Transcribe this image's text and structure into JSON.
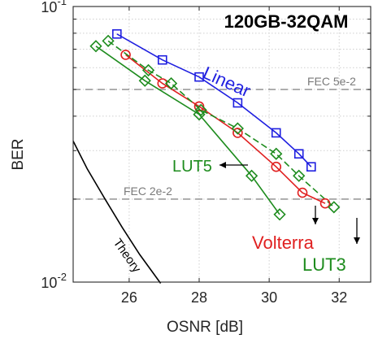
{
  "chart_data": {
    "type": "line",
    "title": "120GB-32QAM",
    "xlabel": "OSNR [dB]",
    "ylabel": "BER",
    "yscale": "log",
    "xlim": [
      24.4,
      32.9
    ],
    "ylim": [
      0.01,
      0.1
    ],
    "xticks": [
      26,
      28,
      30,
      32
    ],
    "ytick_labels": [
      {
        "value": 0.1,
        "base": "10",
        "exp": "-1"
      },
      {
        "value": 0.01,
        "base": "10",
        "exp": "-2"
      }
    ],
    "grid": true,
    "series": [
      {
        "name": "Linear",
        "color": "#1f1fe0",
        "marker": "square",
        "dashed": false,
        "x": [
          25.65,
          26.95,
          28.0,
          29.1,
          30.2,
          30.85,
          31.2
        ],
        "y": [
          0.0795,
          0.064,
          0.0555,
          0.0447,
          0.0348,
          0.0292,
          0.0262
        ]
      },
      {
        "name": "Volterra",
        "color": "#e02020",
        "marker": "circle",
        "dashed": false,
        "x": [
          25.9,
          26.95,
          28.0,
          29.1,
          30.2,
          30.95,
          31.6
        ],
        "y": [
          0.0668,
          0.0526,
          0.0434,
          0.0348,
          0.0262,
          0.0211,
          0.0193
        ]
      },
      {
        "name": "LUT3",
        "color": "#1e8c1e",
        "marker": "diamond",
        "dashed": true,
        "x": [
          25.4,
          26.55,
          27.2,
          28.05,
          29.1,
          30.2,
          30.85,
          31.85
        ],
        "y": [
          0.075,
          0.0587,
          0.0526,
          0.0421,
          0.0361,
          0.0292,
          0.0243,
          0.0187
        ]
      },
      {
        "name": "LUT5",
        "color": "#1e8c1e",
        "marker": "diamond",
        "dashed": false,
        "x": [
          25.05,
          26.45,
          28.0,
          29.5,
          30.3
        ],
        "y": [
          0.0718,
          0.0538,
          0.0406,
          0.0243,
          0.0176
        ]
      },
      {
        "name": "Theory",
        "color": "#000000",
        "marker": "none",
        "dashed": false,
        "x": [
          24.4,
          24.8,
          25.3,
          25.8,
          26.3,
          26.9
        ],
        "y": [
          0.0325,
          0.0258,
          0.0201,
          0.0158,
          0.0126,
          0.0099
        ]
      }
    ],
    "reference_lines": [
      {
        "label": "FEC 5e-2",
        "y": 0.05
      },
      {
        "label": "FEC 2e-2",
        "y": 0.02
      }
    ],
    "series_labels": {
      "linear": "Linear",
      "volterra": "Volterra",
      "lut3": "LUT3",
      "lut5": "LUT5",
      "theory": "Theory"
    }
  }
}
